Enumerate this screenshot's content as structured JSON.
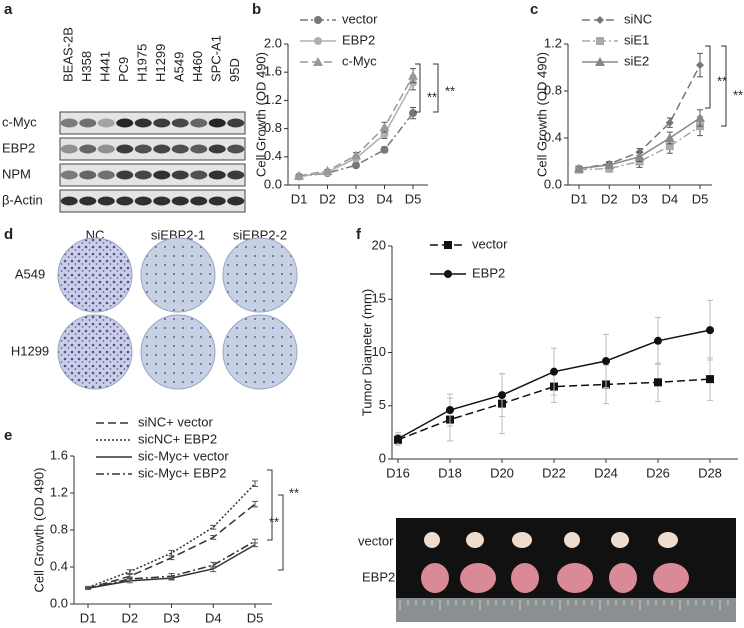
{
  "panel_letters": [
    "a",
    "b",
    "c",
    "d",
    "e",
    "f"
  ],
  "blot": {
    "cell_lines": [
      "BEAS-2B",
      "H358",
      "H441",
      "PC9",
      "H1975",
      "H1299",
      "A549",
      "H460",
      "SPC-A1",
      "95D"
    ],
    "proteins": [
      "c-Myc",
      "EBP2",
      "NPM",
      "β-Actin"
    ]
  },
  "colony": {
    "columns": [
      "NC",
      "siEBP2-1",
      "siEBP2-2"
    ],
    "rows": [
      "A549",
      "H1299"
    ]
  },
  "tumor": {
    "rows": [
      "vector",
      "EBP2"
    ]
  },
  "chart_data": [
    {
      "type": "line",
      "ylabel": "Cell Growth (OD 490)",
      "categories": [
        "D1",
        "D2",
        "D3",
        "D4",
        "D5"
      ],
      "ylim": [
        0,
        2.0
      ],
      "yticks": [
        {
          "value": 0,
          "label": "0.0"
        },
        {
          "value": 0.4,
          "label": "0.4"
        },
        {
          "value": 0.8,
          "label": "0.8"
        },
        {
          "value": 1.2,
          "label": "1.2"
        },
        {
          "value": 1.6,
          "label": "1.6"
        },
        {
          "value": 2.0,
          "label": "2.0"
        }
      ],
      "series": [
        {
          "name": "vector",
          "color": "#777777",
          "marker": "circle",
          "linestyle": "dashdot",
          "values": [
            0.12,
            0.17,
            0.28,
            0.5,
            1.02
          ],
          "errors": [
            0.02,
            0.02,
            0.03,
            0.04,
            0.08
          ]
        },
        {
          "name": "EBP2",
          "color": "#b0b0b0",
          "marker": "circle",
          "linestyle": "solid",
          "values": [
            0.12,
            0.18,
            0.38,
            0.72,
            1.45
          ],
          "errors": [
            0.02,
            0.02,
            0.04,
            0.06,
            0.1
          ]
        },
        {
          "name": "c-Myc",
          "color": "#999999",
          "marker": "triangle",
          "linestyle": "dashed",
          "values": [
            0.13,
            0.2,
            0.42,
            0.82,
            1.55
          ],
          "errors": [
            0.02,
            0.02,
            0.04,
            0.07,
            0.1
          ]
        }
      ],
      "annotations": [
        "**",
        "**"
      ]
    },
    {
      "type": "line",
      "ylabel": "Cell Growth (OD 490)",
      "categories": [
        "D1",
        "D2",
        "D3",
        "D4",
        "D5"
      ],
      "ylim": [
        0,
        1.2
      ],
      "yticks": [
        {
          "value": 0,
          "label": "0.0"
        },
        0.4,
        0.8,
        1.2
      ],
      "series": [
        {
          "name": "siNC",
          "color": "#777777",
          "marker": "diamond",
          "linestyle": "dashed",
          "values": [
            0.14,
            0.18,
            0.28,
            0.53,
            1.02
          ],
          "errors": [
            0.02,
            0.02,
            0.03,
            0.04,
            0.1
          ]
        },
        {
          "name": "siE1",
          "color": "#aaaaaa",
          "marker": "square",
          "linestyle": "dashdot",
          "values": [
            0.13,
            0.14,
            0.2,
            0.33,
            0.5
          ],
          "errors": [
            0.02,
            0.03,
            0.05,
            0.06,
            0.08
          ]
        },
        {
          "name": "siE2",
          "color": "#888888",
          "marker": "triangle",
          "linestyle": "solid",
          "values": [
            0.14,
            0.17,
            0.24,
            0.4,
            0.57
          ],
          "errors": [
            0.02,
            0.02,
            0.04,
            0.05,
            0.07
          ]
        }
      ],
      "annotations": [
        "**",
        "**"
      ]
    },
    {
      "type": "line",
      "ylabel": "Cell Growth (OD 490)",
      "categories": [
        "D1",
        "D2",
        "D3",
        "D4",
        "D5"
      ],
      "ylim": [
        0,
        1.6
      ],
      "yticks": [
        {
          "value": 0,
          "label": "0.0"
        },
        0.4,
        0.8,
        1.2,
        1.6
      ],
      "series": [
        {
          "name": "siNC+ vector",
          "color": "#333333",
          "linestyle": "dashed",
          "values": [
            0.17,
            0.3,
            0.5,
            0.72,
            1.08
          ],
          "errors": [
            0.01,
            0.02,
            0.02,
            0.02,
            0.03
          ]
        },
        {
          "name": "sicNC+ EBP2",
          "color": "#333333",
          "linestyle": "dotted",
          "values": [
            0.18,
            0.35,
            0.55,
            0.83,
            1.3
          ],
          "errors": [
            0.01,
            0.02,
            0.03,
            0.02,
            0.03
          ]
        },
        {
          "name": "sic-Myc+ vector",
          "color": "#333333",
          "linestyle": "solid",
          "values": [
            0.17,
            0.25,
            0.28,
            0.38,
            0.64
          ],
          "errors": [
            0.01,
            0.02,
            0.02,
            0.03,
            0.02
          ]
        },
        {
          "name": "sic-Myc+ EBP2",
          "color": "#333333",
          "linestyle": "dashdot",
          "values": [
            0.17,
            0.27,
            0.3,
            0.42,
            0.68
          ],
          "errors": [
            0.01,
            0.02,
            0.03,
            0.03,
            0.02
          ]
        }
      ],
      "annotations": [
        "**",
        "**"
      ]
    },
    {
      "type": "line",
      "ylabel": "Tumor Diameter (mm)",
      "categories": [
        "D16",
        "D18",
        "D20",
        "D22",
        "D24",
        "D26",
        "D28"
      ],
      "ylim": [
        0,
        20
      ],
      "yticks": [
        0,
        5,
        10,
        15,
        20
      ],
      "series": [
        {
          "name": "vector",
          "color": "#111111",
          "marker": "square",
          "linestyle": "dashed",
          "values": [
            1.8,
            3.7,
            5.2,
            6.8,
            7.0,
            7.2,
            7.5
          ],
          "errors": [
            0.5,
            2.0,
            2.8,
            1.5,
            1.8,
            1.8,
            2.0
          ]
        },
        {
          "name": "EBP2",
          "color": "#111111",
          "marker": "circle",
          "linestyle": "solid",
          "values": [
            1.9,
            4.6,
            6.0,
            8.2,
            9.2,
            11.1,
            12.1
          ],
          "errors": [
            0.6,
            1.5,
            2.0,
            2.2,
            2.5,
            2.2,
            2.8
          ]
        }
      ]
    }
  ]
}
